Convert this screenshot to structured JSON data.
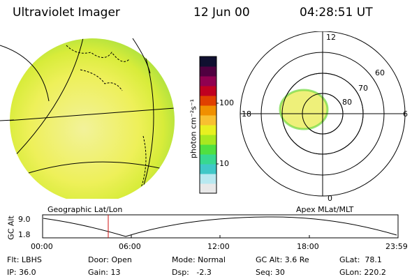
{
  "header": {
    "instrument": "Ultraviolet Imager",
    "date": "12 Jun 00",
    "time": "04:28:51 UT"
  },
  "colorbar": {
    "unit_label": "photon cm⁻²s⁻¹",
    "tick_100": "100",
    "tick_10": "10",
    "colors": [
      "#e8e8e8",
      "#b8e8f0",
      "#40c8c8",
      "#38d890",
      "#50e040",
      "#a8e820",
      "#e8f020",
      "#f8c030",
      "#f09000",
      "#e04000",
      "#c00020",
      "#900050",
      "#500040",
      "#101030"
    ]
  },
  "geo_panel": {
    "label": "Geographic Lat/Lon"
  },
  "polar_panel": {
    "label": "Apex MLat/MLT",
    "mlt": {
      "top": "12",
      "left": "18",
      "right": "6",
      "bottom": "0"
    },
    "lat": {
      "l60": "60",
      "l70": "70",
      "l80": "80"
    }
  },
  "altitude_plot": {
    "ylabel": "GC Alt",
    "yticks": [
      "9.0",
      "1.8"
    ],
    "xticks": [
      "00:00",
      "06:00",
      "12:00",
      "18:00",
      "23:59"
    ]
  },
  "info": {
    "flt": "Flt: LBHS",
    "ip": "IP: 36.0",
    "door": "Door: Open",
    "gain": "Gain: 13",
    "mode": "Mode: Normal",
    "dsp": "Dsp:   -2.3",
    "gcalt": "GC Alt: 3.6 Re",
    "seq": "Seq: 30",
    "glat": "GLat:  78.1",
    "glon": "GLon: 220.2"
  }
}
